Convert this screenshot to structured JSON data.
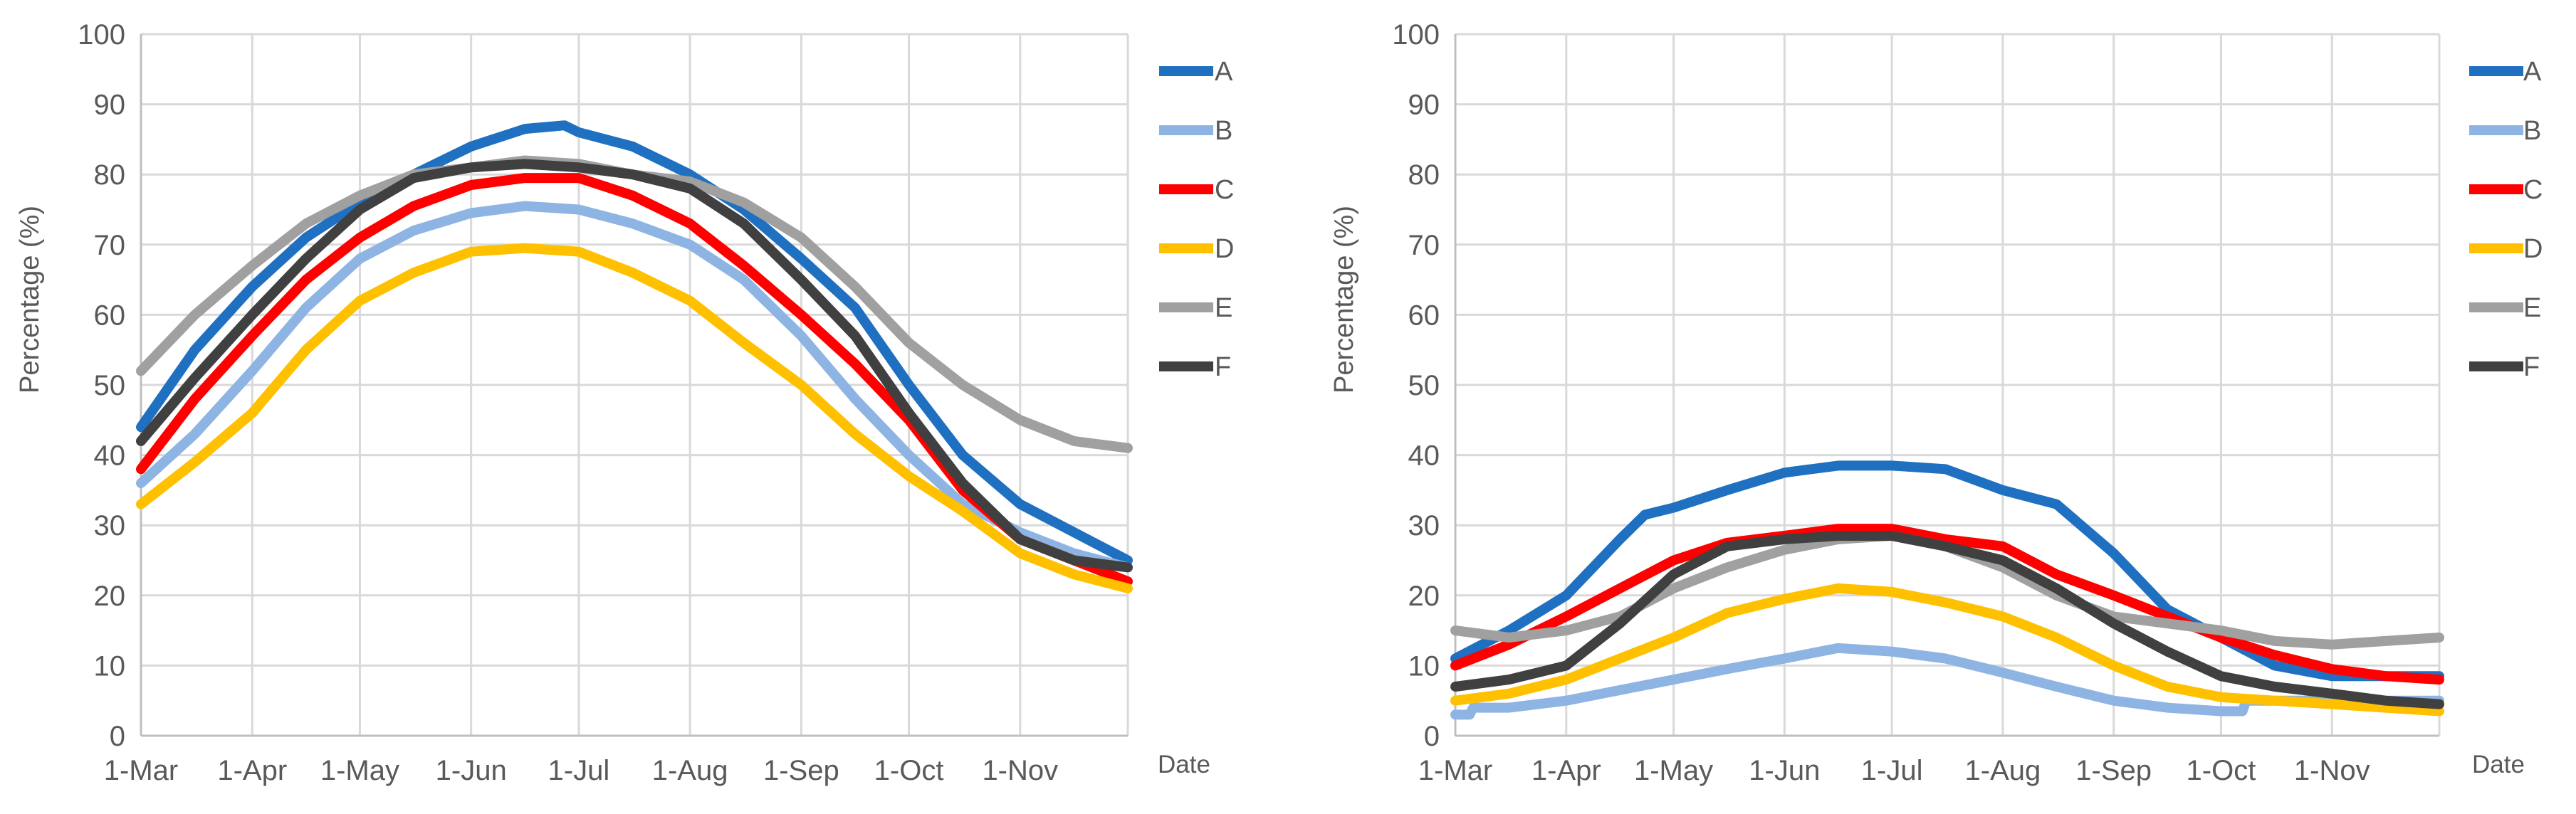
{
  "chart_data": [
    {
      "type": "line",
      "title": "",
      "xlabel": "Date",
      "ylabel": "Percentage (%)",
      "ylim": [
        0,
        100
      ],
      "xlim": [
        0,
        275
      ],
      "x_ticks": [
        {
          "label": "1-Mar",
          "day": 0
        },
        {
          "label": "1-Apr",
          "day": 31
        },
        {
          "label": "1-May",
          "day": 61
        },
        {
          "label": "1-Jun",
          "day": 92
        },
        {
          "label": "1-Jul",
          "day": 122
        },
        {
          "label": "1-Aug",
          "day": 153
        },
        {
          "label": "1-Sep",
          "day": 184
        },
        {
          "label": "1-Oct",
          "day": 214
        },
        {
          "label": "1-Nov",
          "day": 245
        }
      ],
      "y_ticks": [
        "0",
        "10",
        "20",
        "30",
        "40",
        "50",
        "60",
        "70",
        "80",
        "90",
        "100"
      ],
      "series": [
        {
          "name": "A",
          "color": "#1f70c1",
          "x": [
            0,
            15,
            31,
            46,
            61,
            76,
            92,
            107,
            118,
            122,
            137,
            153,
            168,
            184,
            199,
            214,
            229,
            245,
            260,
            275
          ],
          "values": [
            44,
            55,
            64,
            71,
            76,
            80,
            84,
            86.5,
            87,
            86,
            84,
            80,
            75,
            68,
            61,
            50,
            40,
            33,
            29,
            25
          ]
        },
        {
          "name": "B",
          "color": "#8eb4e3",
          "x": [
            0,
            15,
            31,
            46,
            61,
            76,
            92,
            107,
            122,
            137,
            153,
            168,
            184,
            199,
            214,
            229,
            245,
            260,
            275
          ],
          "values": [
            36,
            43,
            52,
            61,
            68,
            72,
            74.5,
            75.5,
            75,
            73,
            70,
            65,
            57,
            48,
            40,
            33,
            29,
            26,
            24
          ]
        },
        {
          "name": "C",
          "color": "#ff0000",
          "x": [
            0,
            15,
            31,
            46,
            61,
            76,
            92,
            107,
            122,
            137,
            153,
            168,
            184,
            199,
            214,
            229,
            245,
            260,
            275
          ],
          "values": [
            38,
            48,
            57,
            65,
            71,
            75.5,
            78.5,
            79.5,
            79.5,
            77,
            73,
            67,
            60,
            53,
            45,
            35,
            28,
            25,
            22
          ]
        },
        {
          "name": "D",
          "color": "#ffc000",
          "x": [
            0,
            15,
            31,
            46,
            61,
            76,
            92,
            107,
            122,
            137,
            153,
            168,
            184,
            199,
            214,
            229,
            245,
            260,
            275
          ],
          "values": [
            33,
            39,
            46,
            55,
            62,
            66,
            69,
            69.5,
            69,
            66,
            62,
            56,
            50,
            43,
            37,
            32,
            26,
            23,
            21
          ]
        },
        {
          "name": "E",
          "color": "#a0a0a0",
          "x": [
            0,
            15,
            31,
            46,
            61,
            76,
            92,
            107,
            122,
            137,
            153,
            168,
            184,
            199,
            214,
            229,
            245,
            260,
            275
          ],
          "values": [
            52,
            60,
            67,
            73,
            77,
            80,
            81,
            82,
            81.5,
            80,
            79,
            76,
            71,
            64,
            56,
            50,
            45,
            42,
            41
          ]
        },
        {
          "name": "F",
          "color": "#404040",
          "x": [
            0,
            15,
            31,
            46,
            61,
            76,
            92,
            107,
            122,
            137,
            153,
            168,
            184,
            199,
            214,
            229,
            245,
            260,
            275
          ],
          "values": [
            42,
            51,
            60,
            68,
            75,
            79.5,
            81,
            81.5,
            81,
            80,
            78,
            73,
            65,
            57,
            46,
            36,
            28,
            25,
            24
          ]
        }
      ],
      "legend": "right"
    },
    {
      "type": "line",
      "title": "",
      "xlabel": "Date",
      "ylabel": "Percentage (%)",
      "ylim": [
        0,
        100
      ],
      "xlim": [
        0,
        275
      ],
      "x_ticks": [
        {
          "label": "1-Mar",
          "day": 0
        },
        {
          "label": "1-Apr",
          "day": 31
        },
        {
          "label": "1-May",
          "day": 61
        },
        {
          "label": "1-Jun",
          "day": 92
        },
        {
          "label": "1-Jul",
          "day": 122
        },
        {
          "label": "1-Aug",
          "day": 153
        },
        {
          "label": "1-Sep",
          "day": 184
        },
        {
          "label": "1-Oct",
          "day": 214
        },
        {
          "label": "1-Nov",
          "day": 245
        }
      ],
      "y_ticks": [
        "0",
        "10",
        "20",
        "30",
        "40",
        "50",
        "60",
        "70",
        "80",
        "90",
        "100"
      ],
      "series": [
        {
          "name": "A",
          "color": "#1f70c1",
          "x": [
            0,
            15,
            31,
            46,
            53,
            61,
            76,
            92,
            107,
            122,
            137,
            153,
            168,
            184,
            199,
            214,
            229,
            245,
            260,
            275
          ],
          "values": [
            11,
            15,
            20,
            28,
            31.5,
            32.5,
            35,
            37.5,
            38.5,
            38.5,
            38,
            35,
            33,
            26,
            18,
            14,
            10,
            8.5,
            8.5,
            8.5
          ]
        },
        {
          "name": "B",
          "color": "#8eb4e3",
          "x": [
            0,
            4,
            5,
            15,
            31,
            46,
            61,
            76,
            92,
            107,
            122,
            137,
            153,
            168,
            184,
            199,
            214,
            220,
            221,
            229,
            245,
            260,
            275
          ],
          "values": [
            3,
            3,
            4,
            4,
            5,
            6.5,
            8,
            9.5,
            11,
            12.5,
            12,
            11,
            9,
            7,
            5,
            4,
            3.5,
            3.5,
            5,
            5,
            5,
            5,
            5
          ]
        },
        {
          "name": "C",
          "color": "#ff0000",
          "x": [
            0,
            15,
            31,
            46,
            61,
            76,
            92,
            107,
            122,
            137,
            153,
            168,
            184,
            199,
            214,
            229,
            245,
            260,
            275
          ],
          "values": [
            10,
            13,
            17,
            21,
            25,
            27.5,
            28.5,
            29.5,
            29.5,
            28,
            27,
            23,
            20,
            17,
            14,
            11.5,
            9.5,
            8.5,
            8
          ]
        },
        {
          "name": "D",
          "color": "#ffc000",
          "x": [
            0,
            15,
            31,
            46,
            61,
            76,
            92,
            107,
            122,
            137,
            153,
            168,
            184,
            199,
            214,
            229,
            245,
            260,
            275
          ],
          "values": [
            5,
            6,
            8,
            11,
            14,
            17.5,
            19.5,
            21,
            20.5,
            19,
            17,
            14,
            10,
            7,
            5.5,
            5,
            4.5,
            4,
            3.5
          ]
        },
        {
          "name": "E",
          "color": "#a0a0a0",
          "x": [
            0,
            15,
            31,
            46,
            61,
            76,
            92,
            107,
            122,
            137,
            153,
            168,
            184,
            199,
            214,
            229,
            245,
            260,
            275
          ],
          "values": [
            15,
            14,
            15,
            17,
            21,
            24,
            26.5,
            28,
            28.5,
            27,
            24,
            20,
            17,
            16,
            15,
            13.5,
            13,
            13.5,
            14
          ]
        },
        {
          "name": "F",
          "color": "#404040",
          "x": [
            0,
            15,
            31,
            46,
            61,
            76,
            92,
            107,
            122,
            137,
            153,
            168,
            184,
            199,
            214,
            229,
            245,
            260,
            275
          ],
          "values": [
            7,
            8,
            10,
            16,
            23,
            27,
            28,
            28.5,
            28.5,
            27,
            25,
            21,
            16,
            12,
            8.5,
            7,
            6,
            5,
            4.5
          ]
        }
      ],
      "legend": "right"
    }
  ]
}
